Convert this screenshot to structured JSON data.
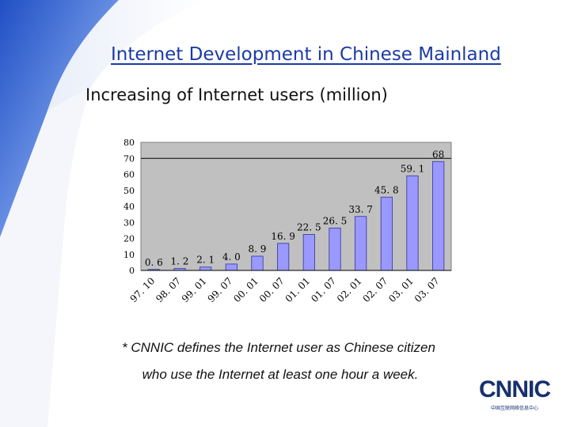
{
  "slide": {
    "title": "Internet Development in Chinese Mainland",
    "subtitle": "Increasing of Internet users (million)",
    "footnote_line1": "* CNNIC defines the Internet user as Chinese citizen",
    "footnote_line2": "who use the Internet at least one hour a week.",
    "logo_text": "CNNIC",
    "logo_subtext": "中国互联网络信息中心"
  },
  "colors": {
    "plot_bg": "#c0c0c0",
    "bar_fill": "#9999ff",
    "bar_stroke": "#333399",
    "title": "#1b3aa6",
    "background_band": "#3a63c9"
  },
  "chart_data": {
    "type": "bar",
    "categories": [
      "97. 10",
      "98. 07",
      "99. 01",
      "99. 07",
      "00. 01",
      "00. 07",
      "01. 01",
      "01. 07",
      "02. 01",
      "02. 07",
      "03. 01",
      "03. 07"
    ],
    "values": [
      0.6,
      1.2,
      2.1,
      4.0,
      8.9,
      16.9,
      22.5,
      26.5,
      33.7,
      45.8,
      59.1,
      68
    ],
    "data_labels": [
      "0. 6",
      "1. 2",
      "2. 1",
      "4. 0",
      "8. 9",
      "16. 9",
      "22. 5",
      "26. 5",
      "33. 7",
      "45. 8",
      "59. 1",
      "68"
    ],
    "y_ticks": [
      "0",
      "10",
      "20",
      "30",
      "40",
      "50",
      "60",
      "70",
      "80"
    ],
    "ylim": [
      0,
      80
    ],
    "grid": "horizontal at 70",
    "legend": "none",
    "title": "",
    "xlabel": "",
    "ylabel": ""
  }
}
